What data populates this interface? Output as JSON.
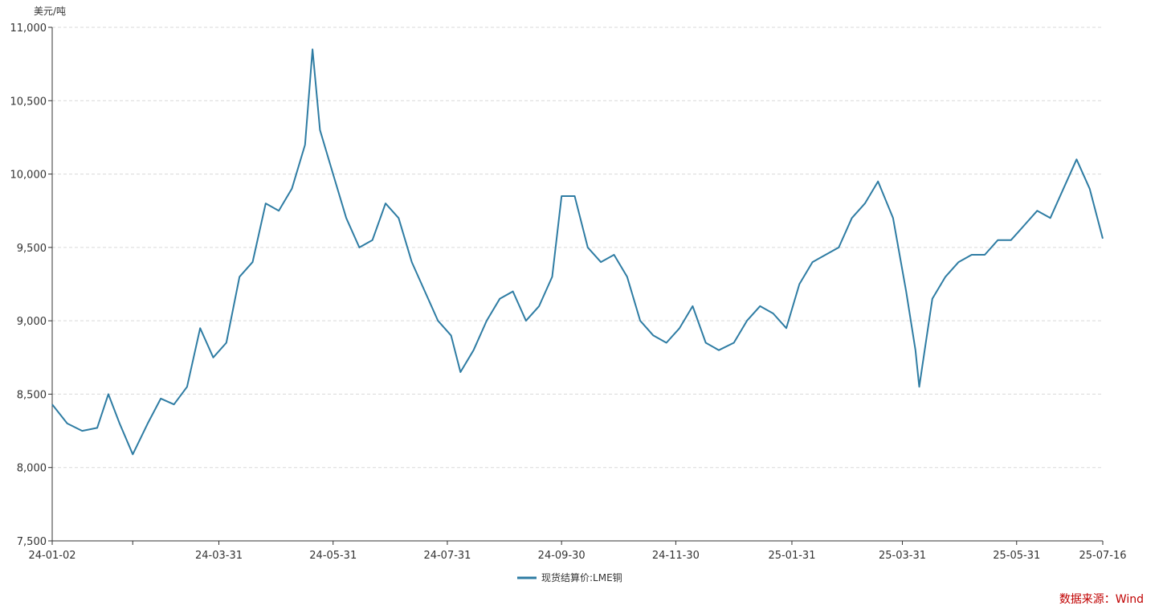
{
  "chart_data": {
    "type": "line",
    "unit_label": "美元/吨",
    "ylim": [
      7500,
      11000
    ],
    "y_ticks": [
      7500,
      8000,
      8500,
      9000,
      9500,
      10000,
      10500,
      11000
    ],
    "y_tick_labels": [
      "7,500",
      "8,000",
      "8,500",
      "9,000",
      "9,500",
      "10,000",
      "10,500",
      "11,000"
    ],
    "x_range": [
      "2024-01-02",
      "2025-07-16"
    ],
    "x_ticks": [
      "2024-01-02",
      "2024-03-31",
      "2024-05-31",
      "2024-07-31",
      "2024-09-30",
      "2024-11-30",
      "2025-01-31",
      "2025-03-31",
      "2025-05-31",
      "2025-07-16"
    ],
    "x_tick_labels": [
      "24-01-02",
      "24-03-31",
      "24-05-31",
      "24-07-31",
      "24-09-30",
      "24-11-30",
      "25-01-31",
      "25-03-31",
      "25-05-31",
      "25-07-16"
    ],
    "grid": "horizontal-dashed",
    "legend_position": "bottom-center",
    "series": [
      {
        "name": "现货结算价:LME铜",
        "color": "#2e7ca3",
        "x": [
          "2024-01-02",
          "2024-01-10",
          "2024-01-18",
          "2024-01-26",
          "2024-02-01",
          "2024-02-07",
          "2024-02-14",
          "2024-02-22",
          "2024-02-29",
          "2024-03-07",
          "2024-03-14",
          "2024-03-21",
          "2024-03-28",
          "2024-04-04",
          "2024-04-11",
          "2024-04-18",
          "2024-04-25",
          "2024-05-02",
          "2024-05-09",
          "2024-05-16",
          "2024-05-20",
          "2024-05-24",
          "2024-05-31",
          "2024-06-07",
          "2024-06-14",
          "2024-06-21",
          "2024-06-28",
          "2024-07-05",
          "2024-07-12",
          "2024-07-19",
          "2024-07-26",
          "2024-08-02",
          "2024-08-07",
          "2024-08-14",
          "2024-08-21",
          "2024-08-28",
          "2024-09-04",
          "2024-09-11",
          "2024-09-18",
          "2024-09-25",
          "2024-09-30",
          "2024-10-07",
          "2024-10-14",
          "2024-10-21",
          "2024-10-28",
          "2024-11-04",
          "2024-11-11",
          "2024-11-18",
          "2024-11-25",
          "2024-12-02",
          "2024-12-09",
          "2024-12-16",
          "2024-12-23",
          "2024-12-31",
          "2025-01-07",
          "2025-01-14",
          "2025-01-21",
          "2025-01-28",
          "2025-02-04",
          "2025-02-11",
          "2025-02-18",
          "2025-02-25",
          "2025-03-04",
          "2025-03-11",
          "2025-03-18",
          "2025-03-26",
          "2025-04-02",
          "2025-04-07",
          "2025-04-09",
          "2025-04-16",
          "2025-04-23",
          "2025-04-30",
          "2025-05-07",
          "2025-05-14",
          "2025-05-21",
          "2025-05-28",
          "2025-06-04",
          "2025-06-11",
          "2025-06-18",
          "2025-06-25",
          "2025-07-02",
          "2025-07-09",
          "2025-07-16"
        ],
        "values": [
          8430,
          8300,
          8250,
          8270,
          8500,
          8300,
          8090,
          8300,
          8470,
          8430,
          8550,
          8950,
          8750,
          8850,
          9300,
          9400,
          9800,
          9750,
          9900,
          10200,
          10850,
          10300,
          10000,
          9700,
          9500,
          9550,
          9800,
          9700,
          9400,
          9200,
          9000,
          8900,
          8650,
          8800,
          9000,
          9150,
          9200,
          9000,
          9100,
          9300,
          9850,
          9850,
          9500,
          9400,
          9450,
          9300,
          9000,
          8900,
          8850,
          8950,
          9100,
          8850,
          8800,
          8850,
          9000,
          9100,
          9050,
          8950,
          9250,
          9400,
          9450,
          9500,
          9700,
          9800,
          9950,
          9700,
          9200,
          8800,
          8550,
          9150,
          9300,
          9400,
          9450,
          9450,
          9550,
          9550,
          9650,
          9750,
          9700,
          9900,
          10100,
          9900,
          9560
        ]
      }
    ]
  },
  "source_note": "数据来源：Wind"
}
